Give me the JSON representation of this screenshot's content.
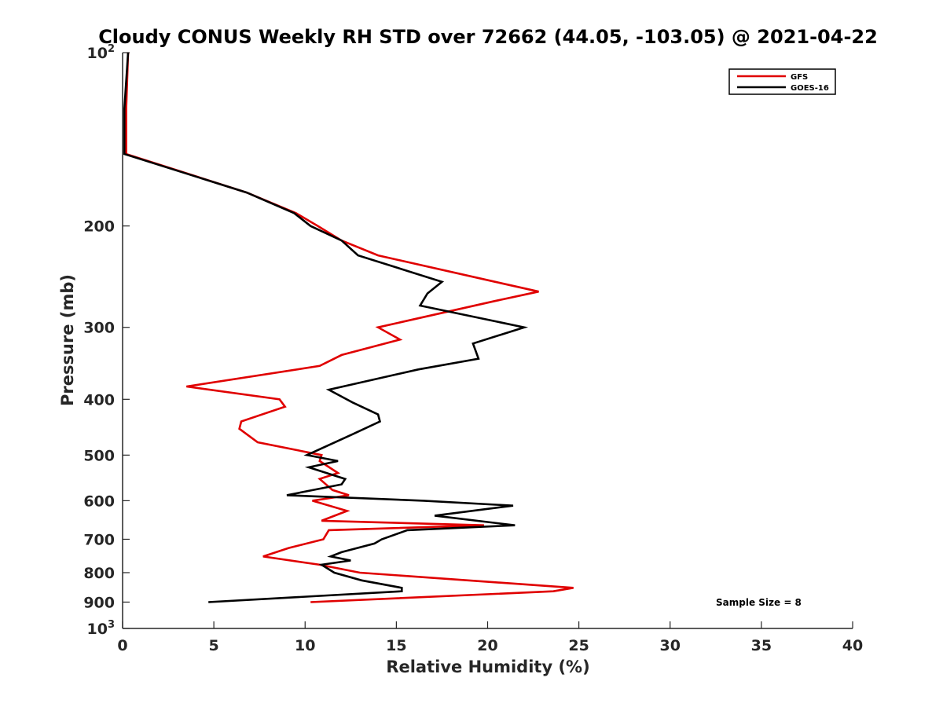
{
  "chart_data": {
    "type": "line",
    "title": "Cloudy CONUS Weekly RH STD over 72662 (44.05, -103.05) @ 2021-04-22",
    "xlabel": "Relative Humidity (%)",
    "ylabel": "Pressure (mb)",
    "xlim": [
      0,
      40
    ],
    "ylim": [
      100,
      1000
    ],
    "y_scale": "log",
    "y_reversed": true,
    "x_ticks": [
      "0",
      "5",
      "10",
      "15",
      "20",
      "25",
      "30",
      "35",
      "40"
    ],
    "y_ticks": [
      {
        "value": 100,
        "base": "10",
        "exp": "2"
      },
      {
        "value": 200,
        "label": "200"
      },
      {
        "value": 300,
        "label": "300"
      },
      {
        "value": 400,
        "label": "400"
      },
      {
        "value": 500,
        "label": "500"
      },
      {
        "value": 600,
        "label": "600"
      },
      {
        "value": 700,
        "label": "700"
      },
      {
        "value": 800,
        "label": "800"
      },
      {
        "value": 900,
        "label": "900"
      },
      {
        "value": 1000,
        "base": "10",
        "exp": "3"
      }
    ],
    "legend_position": "top-right",
    "annotation": "Sample Size = 8",
    "series": [
      {
        "name": "GFS",
        "color": "#e00000",
        "points": [
          [
            0.3,
            100
          ],
          [
            0.2,
            125
          ],
          [
            0.2,
            150
          ],
          [
            6.8,
            175
          ],
          [
            9.5,
            190
          ],
          [
            10.7,
            200
          ],
          [
            12.0,
            212
          ],
          [
            14.0,
            225
          ],
          [
            20.4,
            250
          ],
          [
            22.8,
            260
          ],
          [
            20.4,
            270
          ],
          [
            14.0,
            300
          ],
          [
            15.2,
            315
          ],
          [
            12.0,
            335
          ],
          [
            10.8,
            350
          ],
          [
            3.5,
            380
          ],
          [
            8.6,
            400
          ],
          [
            8.9,
            412
          ],
          [
            6.5,
            437
          ],
          [
            6.4,
            450
          ],
          [
            7.4,
            475
          ],
          [
            10.9,
            500
          ],
          [
            10.8,
            512
          ],
          [
            11.8,
            537
          ],
          [
            10.8,
            550
          ],
          [
            11.5,
            575
          ],
          [
            12.4,
            587
          ],
          [
            10.4,
            600
          ],
          [
            12.3,
            625
          ],
          [
            10.9,
            650
          ],
          [
            19.8,
            662
          ],
          [
            11.3,
            675
          ],
          [
            11.0,
            700
          ],
          [
            9.1,
            725
          ],
          [
            7.7,
            750
          ],
          [
            10.8,
            775
          ],
          [
            13.0,
            800
          ],
          [
            24.7,
            850
          ],
          [
            23.6,
            862
          ],
          [
            10.3,
            900
          ]
        ]
      },
      {
        "name": "GOES-16",
        "color": "#000000",
        "points": [
          [
            0.3,
            100
          ],
          [
            0.1,
            125
          ],
          [
            0.1,
            150
          ],
          [
            6.8,
            175
          ],
          [
            9.4,
            190
          ],
          [
            10.3,
            200
          ],
          [
            12.0,
            212
          ],
          [
            12.9,
            225
          ],
          [
            17.5,
            250
          ],
          [
            16.7,
            262
          ],
          [
            16.3,
            275
          ],
          [
            22.0,
            300
          ],
          [
            19.2,
            320
          ],
          [
            19.5,
            340
          ],
          [
            16.2,
            355
          ],
          [
            11.3,
            385
          ],
          [
            12.6,
            405
          ],
          [
            14.0,
            425
          ],
          [
            14.1,
            437
          ],
          [
            12.6,
            460
          ],
          [
            10.1,
            500
          ],
          [
            11.8,
            512
          ],
          [
            10.2,
            525
          ],
          [
            12.2,
            550
          ],
          [
            12.0,
            562
          ],
          [
            9.0,
            587
          ],
          [
            16.5,
            600
          ],
          [
            21.4,
            612
          ],
          [
            17.1,
            637
          ],
          [
            21.5,
            662
          ],
          [
            15.6,
            675
          ],
          [
            14.2,
            700
          ],
          [
            13.8,
            712
          ],
          [
            12.0,
            737
          ],
          [
            11.4,
            750
          ],
          [
            12.5,
            762
          ],
          [
            10.9,
            775
          ],
          [
            11.6,
            800
          ],
          [
            13.1,
            825
          ],
          [
            15.3,
            850
          ],
          [
            15.3,
            862
          ],
          [
            4.7,
            900
          ]
        ]
      }
    ]
  }
}
